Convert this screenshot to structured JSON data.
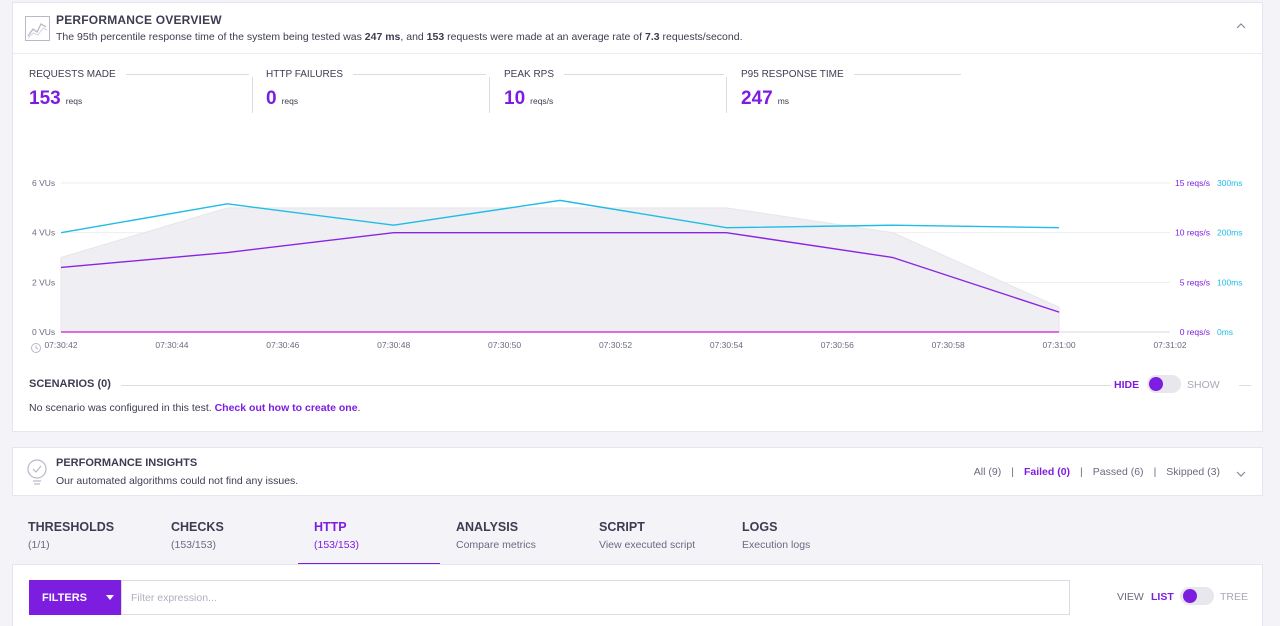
{
  "overview": {
    "title": "PERFORMANCE OVERVIEW",
    "summary": {
      "p1": "The 95th percentile response time of the system being tested was ",
      "p95": "247 ms",
      "p2": ", and ",
      "requests": "153",
      "p3": " requests were made at an average rate of ",
      "rate": "7.3",
      "p4": " requests/second."
    },
    "stats": [
      {
        "label": "REQUESTS MADE",
        "value": "153",
        "unit": "reqs"
      },
      {
        "label": "HTTP FAILURES",
        "value": "0",
        "unit": "reqs"
      },
      {
        "label": "PEAK RPS",
        "value": "10",
        "unit": "reqs/s"
      },
      {
        "label": "P95 RESPONSE TIME",
        "value": "247",
        "unit": "ms"
      }
    ]
  },
  "chart_data": {
    "type": "line",
    "x": [
      "07:30:42",
      "07:30:44",
      "07:30:46",
      "07:30:48",
      "07:30:50",
      "07:30:52",
      "07:30:54",
      "07:30:56",
      "07:30:58",
      "07:31:00",
      "07:31:02"
    ],
    "y_left": {
      "ticks": [
        "0 VUs",
        "2 VUs",
        "4 VUs",
        "6 VUs"
      ],
      "ylim": [
        0,
        6
      ]
    },
    "y_right_rps": {
      "ticks": [
        "0 reqs/s",
        "5 reqs/s",
        "10 reqs/s",
        "15 reqs/s"
      ],
      "ylim": [
        0,
        15
      ]
    },
    "y_right_ms": {
      "ticks": [
        "0ms",
        "100ms",
        "200ms",
        "300ms"
      ],
      "ylim": [
        0,
        300
      ]
    },
    "series": [
      {
        "axis": "vus",
        "color": "#c8c7d2",
        "x": [
          "07:30:42",
          "07:30:45",
          "07:30:48",
          "07:30:51",
          "07:30:54",
          "07:30:57",
          "07:31:00"
        ],
        "values": [
          3,
          5,
          5,
          5,
          5,
          4,
          1
        ]
      },
      {
        "axis": "ms",
        "color": "#1fbde6",
        "x": [
          "07:30:42",
          "07:30:45",
          "07:30:48",
          "07:30:51",
          "07:30:54",
          "07:30:57",
          "07:31:00"
        ],
        "values": [
          200,
          258,
          215,
          265,
          210,
          215,
          210
        ]
      },
      {
        "axis": "rps",
        "color": "#8a24e3",
        "x": [
          "07:30:42",
          "07:30:45",
          "07:30:48",
          "07:30:51",
          "07:30:54",
          "07:30:57",
          "07:31:00"
        ],
        "values": [
          6.5,
          8,
          10,
          10,
          10,
          7.5,
          2
        ]
      },
      {
        "axis": "rps",
        "color": "#d63fd6",
        "x": [
          "07:30:42",
          "07:31:00"
        ],
        "values": [
          0,
          0
        ]
      }
    ],
    "grid": true
  },
  "scenarios": {
    "title": "SCENARIOS (0)",
    "hide": "HIDE",
    "show": "SHOW",
    "message": "No scenario was configured in this test. ",
    "link": "Check out how to create one",
    "message_end": "."
  },
  "insights": {
    "title": "PERFORMANCE INSIGHTS",
    "subtitle": "Our automated algorithms could not find any issues.",
    "filters": [
      "All (9)",
      "Failed (0)",
      "Passed (6)",
      "Skipped (3)"
    ],
    "active_filter": "Failed (0)"
  },
  "tabs": [
    {
      "title": "THRESHOLDS",
      "sub": "(1/1)"
    },
    {
      "title": "CHECKS",
      "sub": "(153/153)"
    },
    {
      "title": "HTTP",
      "sub": "(153/153)"
    },
    {
      "title": "ANALYSIS",
      "sub": "Compare metrics"
    },
    {
      "title": "SCRIPT",
      "sub": "View executed script"
    },
    {
      "title": "LOGS",
      "sub": "Execution logs"
    }
  ],
  "filterbar": {
    "button": "FILTERS",
    "placeholder": "Filter expression...",
    "view": "VIEW",
    "list": "LIST",
    "tree": "TREE"
  },
  "colors": {
    "accent": "#7d1de0",
    "cyan": "#1fbde6"
  }
}
